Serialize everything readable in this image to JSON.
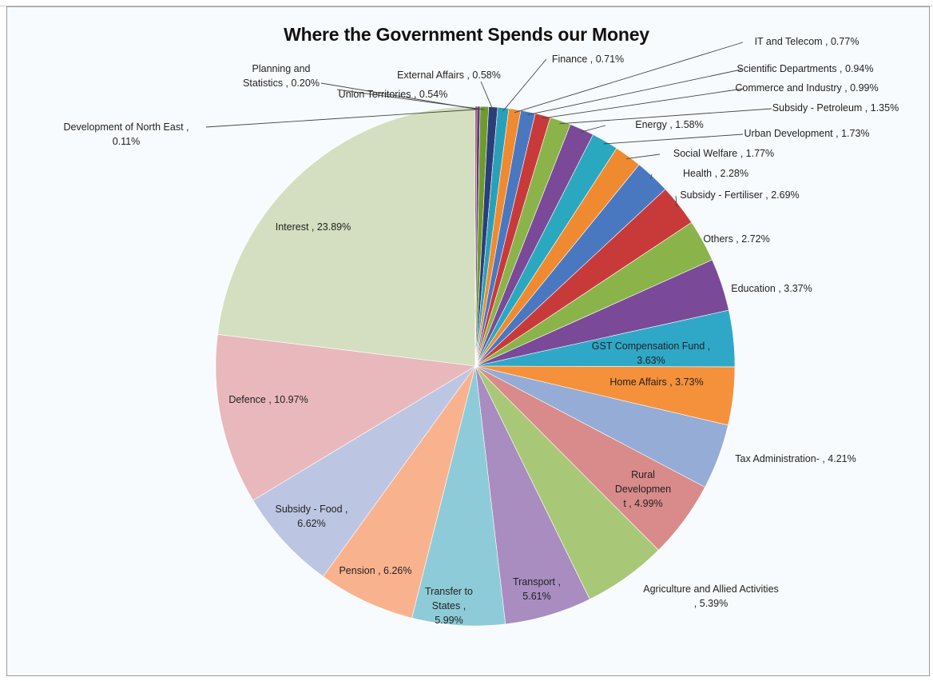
{
  "chart_data": {
    "type": "pie",
    "title": "Where the Government Spends our Money",
    "legend": "none",
    "slices": [
      {
        "name": "Interest",
        "value": 23.89,
        "color": "#d3dfc0",
        "lines": [
          "Interest , 23.89%"
        ]
      },
      {
        "name": "Development of North East",
        "value": 0.11,
        "color": "#8a2040",
        "lines": [
          "Development of North East ,",
          "0.11%"
        ]
      },
      {
        "name": "Planning and Statistics",
        "value": 0.2,
        "color": "#5a3a78",
        "lines": [
          "Planning and",
          "Statistics , 0.20%"
        ]
      },
      {
        "name": "Union Territories",
        "value": 0.54,
        "color": "#6f9a2e",
        "lines": [
          "Union Territories , 0.54%"
        ]
      },
      {
        "name": "External Affairs",
        "value": 0.58,
        "color": "#2c3e78",
        "lines": [
          "External Affairs , 0.58%"
        ]
      },
      {
        "name": "Finance",
        "value": 0.71,
        "color": "#2aa0b8",
        "lines": [
          "Finance , 0.71%"
        ]
      },
      {
        "name": "IT and Telecom",
        "value": 0.77,
        "color": "#f08a30",
        "lines": [
          "IT and Telecom , 0.77%"
        ]
      },
      {
        "name": "Scientific Departments",
        "value": 0.94,
        "color": "#4a78c0",
        "lines": [
          "Scientific Departments , 0.94%"
        ]
      },
      {
        "name": "Commerce and Industry",
        "value": 0.99,
        "color": "#c83a3a",
        "lines": [
          "Commerce and Industry , 0.99%"
        ]
      },
      {
        "name": "Subsidy - Petroleum",
        "value": 1.35,
        "color": "#8ab34a",
        "lines": [
          "Subsidy - Petroleum , 1.35%"
        ]
      },
      {
        "name": "Energy",
        "value": 1.58,
        "color": "#7a4a98",
        "lines": [
          "Energy , 1.58%"
        ]
      },
      {
        "name": "Urban Development",
        "value": 1.73,
        "color": "#2aa8c0",
        "lines": [
          "Urban Development , 1.73%"
        ]
      },
      {
        "name": "Social Welfare",
        "value": 1.77,
        "color": "#f08a30",
        "lines": [
          "Social Welfare , 1.77%"
        ]
      },
      {
        "name": "Health",
        "value": 2.28,
        "color": "#4a78c0",
        "lines": [
          "Health , 2.28%"
        ]
      },
      {
        "name": "Subsidy - Fertiliser",
        "value": 2.69,
        "color": "#c83a3a",
        "lines": [
          "Subsidy - Fertiliser , 2.69%"
        ]
      },
      {
        "name": "Others",
        "value": 2.72,
        "color": "#8ab34a",
        "lines": [
          "Others , 2.72%"
        ]
      },
      {
        "name": "Education",
        "value": 3.37,
        "color": "#7a4a98",
        "lines": [
          "Education , 3.37%"
        ]
      },
      {
        "name": "GST Compensation Fund",
        "value": 3.63,
        "color": "#2fa8c8",
        "lines": [
          "GST Compensation Fund ,",
          "3.63%"
        ]
      },
      {
        "name": "Home Affairs",
        "value": 3.73,
        "color": "#f5913a",
        "lines": [
          "Home Affairs , 3.73%"
        ]
      },
      {
        "name": "Tax Administration",
        "value": 4.21,
        "color": "#94acd6",
        "lines": [
          "Tax Administration- , 4.21%"
        ]
      },
      {
        "name": "Rural Development",
        "value": 4.99,
        "color": "#d98a8a",
        "lines": [
          "Rural",
          "Developmen",
          "t , 4.99%"
        ]
      },
      {
        "name": "Agriculture and Allied Activities",
        "value": 5.39,
        "color": "#a8c878",
        "lines": [
          "Agriculture and Allied Activities",
          ", 5.39%"
        ]
      },
      {
        "name": "Transport",
        "value": 5.61,
        "color": "#a98cc0",
        "lines": [
          "Transport ,",
          "5.61%"
        ]
      },
      {
        "name": "Transfer to States",
        "value": 5.99,
        "color": "#8ecbd8",
        "lines": [
          "Transfer to",
          "States ,",
          "5.99%"
        ]
      },
      {
        "name": "Pension",
        "value": 6.26,
        "color": "#f9b28e",
        "lines": [
          "Pension , 6.26%"
        ]
      },
      {
        "name": "Subsidy - Food",
        "value": 6.62,
        "color": "#bcc6e2",
        "lines": [
          "Subsidy - Food ,",
          "6.62%"
        ]
      },
      {
        "name": "Defence",
        "value": 10.97,
        "color": "#e8b8bc",
        "lines": [
          "Defence , 10.97%"
        ]
      }
    ]
  }
}
